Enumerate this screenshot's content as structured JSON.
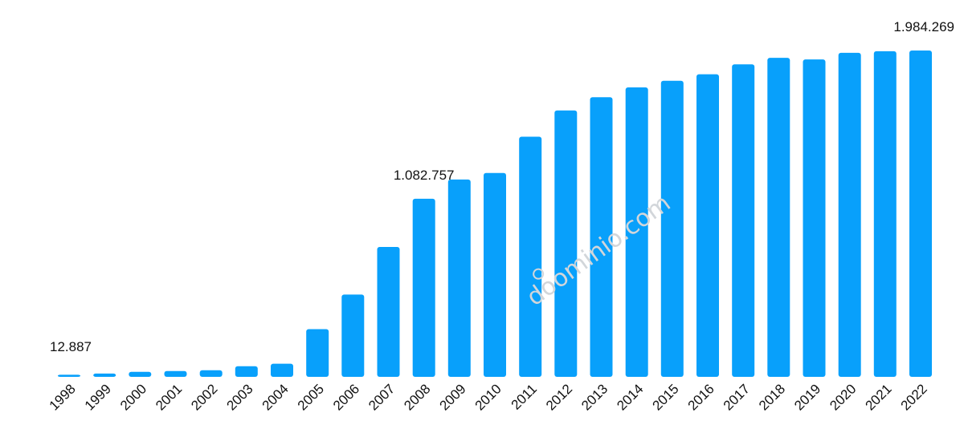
{
  "chart_data": {
    "type": "bar",
    "title": "",
    "xlabel": "",
    "ylabel": "",
    "categories": [
      "1998",
      "1999",
      "2000",
      "2001",
      "2002",
      "2003",
      "2004",
      "2005",
      "2006",
      "2007",
      "2008",
      "2009",
      "2010",
      "2011",
      "2012",
      "2013",
      "2014",
      "2015",
      "2016",
      "2017",
      "2018",
      "2019",
      "2020",
      "2021",
      "2022"
    ],
    "values": [
      12887,
      20000,
      30000,
      35000,
      40000,
      65000,
      80000,
      290000,
      500000,
      790000,
      1082757,
      1200000,
      1240000,
      1460000,
      1620000,
      1700000,
      1760000,
      1800000,
      1840000,
      1900000,
      1940000,
      1930000,
      1970000,
      1980000,
      1984269
    ],
    "data_labels": [
      {
        "category": "1998",
        "text": "12.887"
      },
      {
        "category": "2008",
        "text": "1.082.757"
      },
      {
        "category": "2022",
        "text": "1.984.269"
      }
    ],
    "ylim": [
      0,
      1984269
    ],
    "grid": false,
    "legend": "none",
    "bar_color": "#08a0fb"
  },
  "watermark": {
    "text": "doominio.com"
  }
}
